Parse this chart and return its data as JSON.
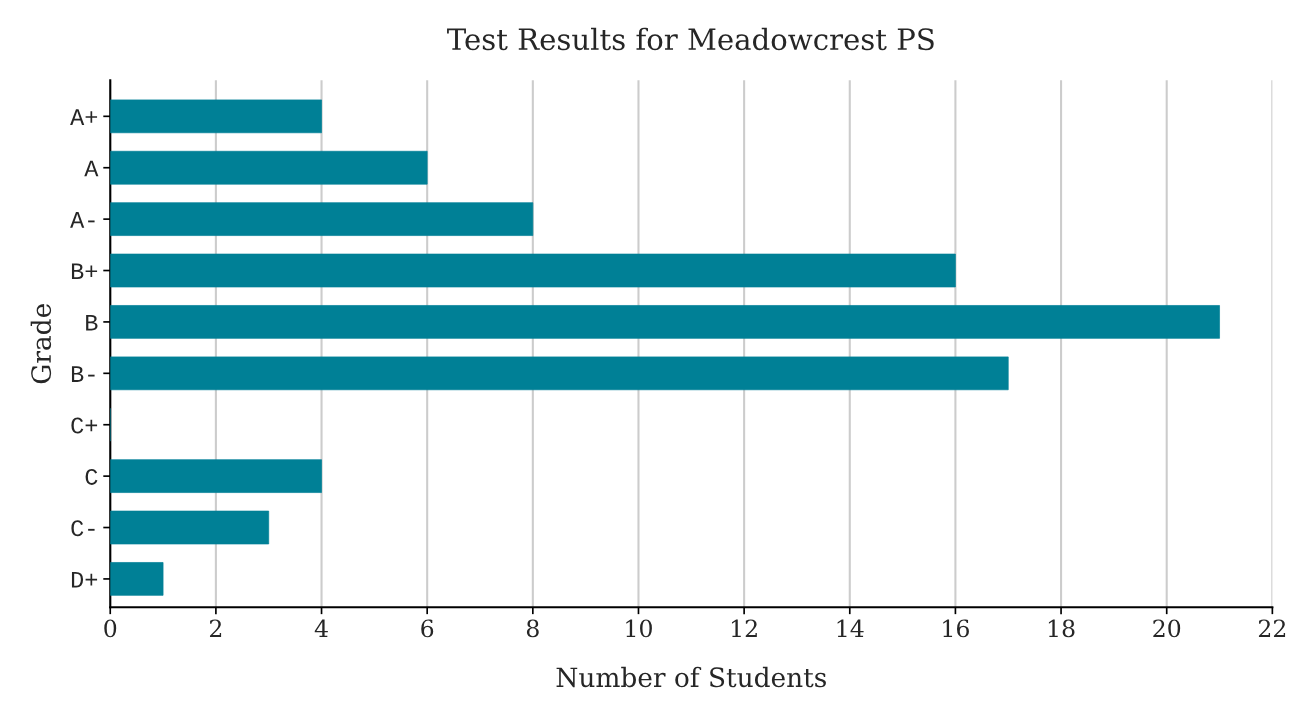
{
  "chart_data": {
    "type": "bar",
    "orientation": "horizontal",
    "title": "Test Results for Meadowcrest PS",
    "xlabel": "Number of Students",
    "ylabel": "Grade",
    "categories": [
      "A+",
      "A",
      "A-",
      "B+",
      "B",
      "B-",
      "C+",
      "C",
      "C-",
      "D+"
    ],
    "values": [
      4,
      6,
      8,
      16,
      21,
      17,
      0,
      4,
      3,
      1
    ],
    "color": "#008096",
    "xlim": [
      0,
      22
    ],
    "xticks": [
      0,
      2,
      4,
      6,
      8,
      10,
      12,
      14,
      16,
      18,
      20,
      22
    ],
    "grid": "x",
    "legend": false
  }
}
